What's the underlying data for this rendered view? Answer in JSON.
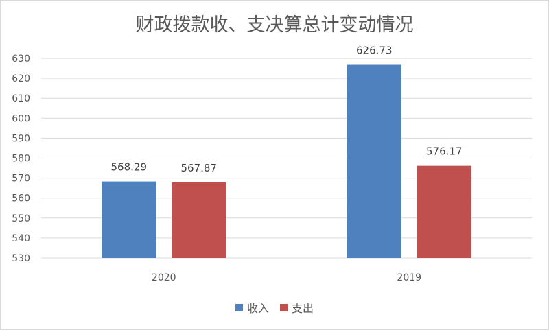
{
  "chart_data": {
    "type": "bar",
    "title": "财政拨款收、支决算总计变动情况",
    "categories": [
      "2020",
      "2019"
    ],
    "series": [
      {
        "name": "收入",
        "values": [
          568.29,
          626.73
        ],
        "color": "#4e81bd"
      },
      {
        "name": "支出",
        "values": [
          567.87,
          576.17
        ],
        "color": "#c0504e"
      }
    ],
    "ylim": [
      530,
      630
    ],
    "yticks": [
      530,
      540,
      550,
      560,
      570,
      580,
      590,
      600,
      610,
      620,
      630
    ],
    "data_labels": [
      [
        "568.29",
        "626.73"
      ],
      [
        "567.87",
        "576.17"
      ]
    ],
    "grid": true,
    "legend": "bottom"
  }
}
